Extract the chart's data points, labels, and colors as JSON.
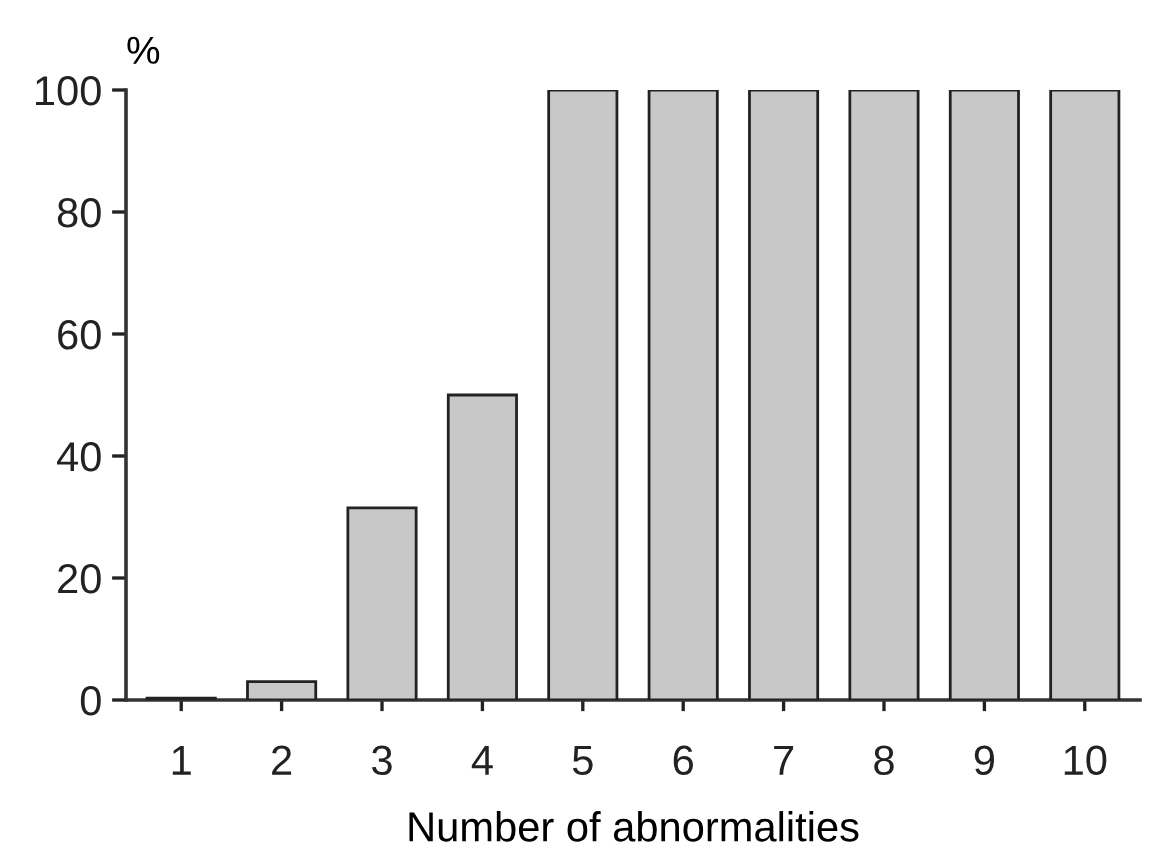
{
  "chart_data": {
    "type": "bar",
    "ylabel": "%",
    "xlabel": "Number of abnormalities",
    "categories": [
      "1",
      "2",
      "3",
      "4",
      "5",
      "6",
      "7",
      "8",
      "9",
      "10"
    ],
    "values": [
      0.3,
      3,
      31.5,
      50,
      100,
      100,
      100,
      100,
      100,
      100
    ],
    "color": "#c8c8c8",
    "ylim": [
      0,
      100
    ],
    "yticks": [
      0,
      20,
      40,
      60,
      80,
      100
    ],
    "grid": false
  }
}
